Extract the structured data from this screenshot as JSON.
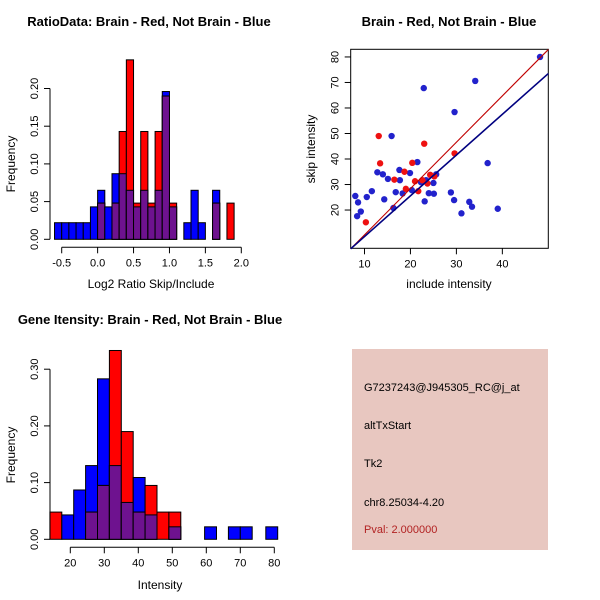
{
  "figure": {
    "background": "#ffffff"
  },
  "colors": {
    "hist_red": "#FF0000",
    "hist_blue": "#0000FF",
    "hist_overlap": "#6E128F",
    "bar_outline": "#000000",
    "point_red": "#EE1111",
    "point_blue": "#2222CC",
    "line_red": "#C00000",
    "line_blue": "#000080",
    "axis": "#000000",
    "panel_bg": "#E8C7C0",
    "pval_red": "#B22222"
  },
  "chart_data": [
    {
      "type": "bar",
      "subtype": "overlaid-histogram",
      "title": "RatioData: Brain - Red, Not Brain - Blue",
      "xlabel": "Log2 Ratio Skip/Include",
      "ylabel": "Frequency",
      "xlim": [
        -0.65,
        2.05
      ],
      "ylim": [
        0,
        0.24
      ],
      "xtick_values": [
        -0.5,
        0.0,
        0.5,
        1.0,
        1.5,
        2.0
      ],
      "xtick_labels": [
        "-0.5",
        "0.0",
        "0.5",
        "1.0",
        "1.5",
        "2.0"
      ],
      "ytick_values": [
        0.0,
        0.05,
        0.1,
        0.15,
        0.2
      ],
      "ytick_labels": [
        "0.00",
        "0.05",
        "0.10",
        "0.15",
        "0.20"
      ],
      "bin_width": 0.1,
      "bin_left_edges": [
        -0.6,
        -0.5,
        -0.4,
        -0.3,
        -0.2,
        -0.1,
        0.0,
        0.1,
        0.2,
        0.3,
        0.4,
        0.5,
        0.6,
        0.7,
        0.8,
        0.9,
        1.0,
        1.1,
        1.2,
        1.3,
        1.4,
        1.5,
        1.6,
        1.7,
        1.8,
        1.9
      ],
      "series": [
        {
          "name": "Not Brain (blue)",
          "values": [
            0.022,
            0.022,
            0.022,
            0.022,
            0.022,
            0.043,
            0.065,
            0.043,
            0.087,
            0.087,
            0.065,
            0.043,
            0.065,
            0.043,
            0.065,
            0.196,
            0.043,
            0,
            0.022,
            0.065,
            0.022,
            0,
            0.065,
            0,
            0,
            0
          ]
        },
        {
          "name": "Brain (red)",
          "values": [
            0,
            0,
            0,
            0,
            0,
            0,
            0.048,
            0,
            0.048,
            0.143,
            0.238,
            0.048,
            0.143,
            0.048,
            0.143,
            0.19,
            0.048,
            0,
            0,
            0,
            0,
            0,
            0.048,
            0,
            0.048,
            0
          ]
        }
      ]
    },
    {
      "type": "scatter",
      "title": "Brain - Red, Not Brain - Blue",
      "xlabel": "include intensity",
      "ylabel": "skip intensity",
      "xlim": [
        7,
        50
      ],
      "ylim": [
        5,
        83
      ],
      "xtick_values": [
        10,
        20,
        30,
        40
      ],
      "xtick_labels": [
        "10",
        "20",
        "30",
        "40"
      ],
      "ytick_values": [
        20,
        30,
        40,
        50,
        60,
        70,
        80
      ],
      "ytick_labels": [
        "20",
        "30",
        "40",
        "50",
        "60",
        "70",
        "80"
      ],
      "series": [
        {
          "name": "Not Brain (blue)",
          "points": [
            [
              8.0,
              25.5
            ],
            [
              8.4,
              17.6
            ],
            [
              8.6,
              23.0
            ],
            [
              9.2,
              19.4
            ],
            [
              10.5,
              25.1
            ],
            [
              11.6,
              27.4
            ],
            [
              12.8,
              34.8
            ],
            [
              14.0,
              34.0
            ],
            [
              14.3,
              24.2
            ],
            [
              15.1,
              32.2
            ],
            [
              15.9,
              49.0
            ],
            [
              16.3,
              20.8
            ],
            [
              16.8,
              27.0
            ],
            [
              17.6,
              35.7
            ],
            [
              17.7,
              31.7
            ],
            [
              18.3,
              26.5
            ],
            [
              19.9,
              34.5
            ],
            [
              20.3,
              27.8
            ],
            [
              21.5,
              38.8
            ],
            [
              22.3,
              30.9
            ],
            [
              22.9,
              67.8
            ],
            [
              23.1,
              23.4
            ],
            [
              23.4,
              31.7
            ],
            [
              24.0,
              26.6
            ],
            [
              25.0,
              30.6
            ],
            [
              25.1,
              26.4
            ],
            [
              25.6,
              34.0
            ],
            [
              28.8,
              26.9
            ],
            [
              29.5,
              23.9
            ],
            [
              29.6,
              58.4
            ],
            [
              31.1,
              18.7
            ],
            [
              32.8,
              23.2
            ],
            [
              33.4,
              21.3
            ],
            [
              34.1,
              70.6
            ],
            [
              36.8,
              38.4
            ],
            [
              39.0,
              20.5
            ],
            [
              48.2,
              80.0
            ]
          ]
        },
        {
          "name": "Brain (red)",
          "points": [
            [
              10.3,
              15.2
            ],
            [
              13.1,
              49.0
            ],
            [
              13.4,
              38.3
            ],
            [
              16.5,
              31.9
            ],
            [
              18.7,
              35.0
            ],
            [
              19.0,
              28.3
            ],
            [
              20.4,
              38.5
            ],
            [
              21.0,
              31.3
            ],
            [
              21.7,
              27.4
            ],
            [
              22.6,
              31.7
            ],
            [
              23.0,
              46.0
            ],
            [
              23.7,
              30.4
            ],
            [
              24.3,
              33.8
            ],
            [
              25.2,
              33.2
            ],
            [
              29.6,
              42.2
            ]
          ]
        }
      ],
      "lines": [
        {
          "name": "brain-fit-line",
          "color_key": "line_red",
          "from": [
            7.0,
            4.8
          ],
          "to": [
            50.0,
            82.9
          ],
          "width": 1.1
        },
        {
          "name": "notbrain-fit-line",
          "color_key": "line_blue",
          "from": [
            7.0,
            4.8
          ],
          "to": [
            50.0,
            73.5
          ],
          "width": 1.6
        }
      ]
    },
    {
      "type": "bar",
      "subtype": "overlaid-histogram",
      "title": "Gene Itensity: Brain - Red, Not Brain - Blue",
      "xlabel": "Intensity",
      "ylabel": "Frequency",
      "xlim": [
        13,
        82
      ],
      "ylim": [
        0,
        0.34
      ],
      "xtick_values": [
        20,
        30,
        40,
        50,
        60,
        70,
        80
      ],
      "xtick_labels": [
        "20",
        "30",
        "40",
        "50",
        "60",
        "70",
        "80"
      ],
      "ytick_values": [
        0.0,
        0.1,
        0.2,
        0.3
      ],
      "ytick_labels": [
        "0.00",
        "0.10",
        "0.20",
        "0.30"
      ],
      "bin_width": 3.5,
      "bin_left_edges": [
        14,
        17.5,
        21,
        24.5,
        28,
        31.5,
        35,
        38.5,
        42,
        45.5,
        49,
        59.5,
        66.5,
        70,
        77.5
      ],
      "series": [
        {
          "name": "Not Brain (blue)",
          "values": [
            0,
            0.043,
            0.087,
            0.13,
            0.283,
            0.13,
            0.065,
            0.109,
            0.043,
            0,
            0.022,
            0.022,
            0.022,
            0.022,
            0.022
          ]
        },
        {
          "name": "Brain (red)",
          "values": [
            0.048,
            0,
            0,
            0.048,
            0.095,
            0.333,
            0.19,
            0.048,
            0.095,
            0.048,
            0.048,
            0,
            0,
            0,
            0
          ]
        }
      ]
    }
  ],
  "panel": {
    "lines": [
      "G7237243@J945305_RC@j_at",
      "altTxStart",
      "Tk2",
      "chr8.25034-4.20"
    ],
    "pval_line": "Pval: 2.000000"
  }
}
